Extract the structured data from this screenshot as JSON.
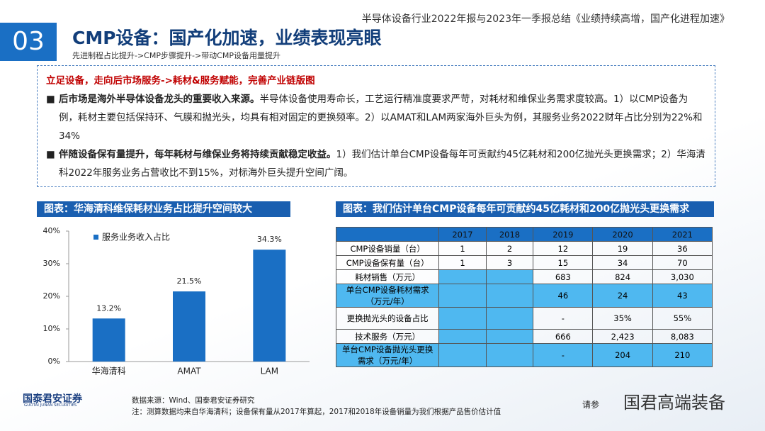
{
  "header": {
    "report_title": "半导体设备行业2022年报与2023年一季报总结《业绩持续高增，国产化进程加速》",
    "section": "03",
    "title": "CMP设备：国产化加速，业绩表现亮眼",
    "subtitle": "先进制程占比提升->CMP步骤提升->带动CMP设备用量提升"
  },
  "summary": {
    "heading": "立足设备，走向后市场服务->耗材&服务赋能，完善产业链版图",
    "bullets": [
      {
        "lead": "后市场是海外半导体设备龙头的重要收入来源。",
        "text": "半导体设备使用寿命长，工艺运行精准度要求严苛，对耗材和维保业务需求度较高。1）以CMP设备为例，耗材主要包括保持环、气膜和抛光头，均具有相对固定的更换频率。2）以AMAT和LAM两家海外巨头为例，其服务业务2022财年占比分别为22%和34%"
      },
      {
        "lead": "伴随设备保有量提升，每年耗材与维保业务将持续贡献稳定收益。",
        "text": "1）我们估计单台CMP设备每年可贡献约45亿耗材和200亿抛光头更换需求；2）华海清科2022年服务业务占营收比不到15%，对标海外巨头提升空间广阔。"
      }
    ]
  },
  "chart_data": {
    "type": "bar",
    "title": "图表：华海清科维保耗材业务占比提升空间较大",
    "categories": [
      "华海清科",
      "AMAT",
      "LAM"
    ],
    "series": [
      {
        "name": "服务业务收入占比",
        "color": "#1a6fc4",
        "values": [
          13.2,
          21.5,
          34.3
        ],
        "value_labels": [
          "13.2%",
          "21.5%",
          "34.3%"
        ]
      }
    ],
    "ylim": [
      0,
      40
    ],
    "yticks": [
      {
        "value": 0,
        "label": "0%"
      },
      {
        "value": 10,
        "label": "10%"
      },
      {
        "value": 20,
        "label": "20%"
      },
      {
        "value": 30,
        "label": "30%"
      },
      {
        "value": 40,
        "label": "40%"
      }
    ],
    "legend": "top-left"
  },
  "table": {
    "title": "图表：我们估计单台CMP设备每年可贡献约45亿耗材和200亿抛光头更换需求",
    "columns": [
      null,
      "2017",
      "2018",
      "2019",
      "2020",
      "2021"
    ],
    "rows": [
      [
        "CMP设备销量（台）",
        "1",
        "2",
        "12",
        "19",
        "36"
      ],
      [
        "CMP设备保有量（台）",
        "1",
        "3",
        "15",
        "34",
        "70"
      ],
      [
        "耗材销售（万元）",
        null,
        null,
        "683",
        "824",
        "3,030"
      ],
      [
        "单台CMP设备耗材需求（万元/年）",
        null,
        null,
        "46",
        "24",
        "43"
      ],
      [
        "更换抛光头的设备占比",
        null,
        null,
        "-",
        "35%",
        "55%"
      ],
      [
        "技术服务（万元）",
        null,
        null,
        "666",
        "2,423",
        "8,083"
      ],
      [
        "单台CMP设备抛光头更换需求（万元/年）",
        null,
        null,
        "-",
        "204",
        "210"
      ]
    ]
  },
  "footer": {
    "source": "数据来源：Wind、国泰君安证券研究",
    "note": "注：测算数据均来自华海清科；设备保有量从2017年算起，2017和2018年设备销量为我们根据产品售价估计值",
    "logo": "国泰君安证券",
    "logo_en": "GUOTAI JUNAN SECURITIES",
    "watermark": "国君高端装备",
    "disclaimer": "请参"
  }
}
